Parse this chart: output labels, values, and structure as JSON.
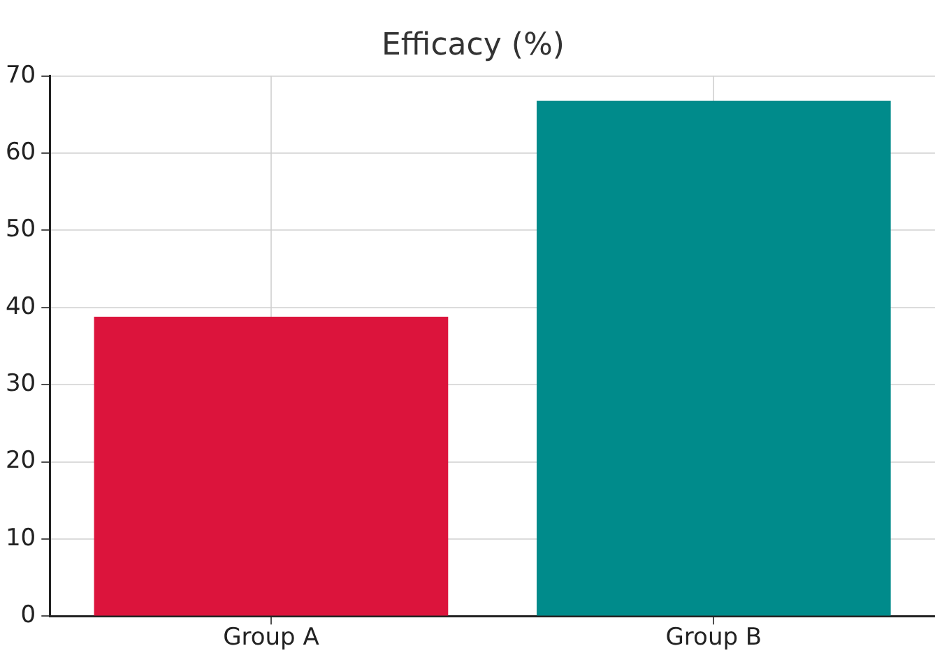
{
  "chart_data": {
    "type": "bar",
    "title": "Efficacy (%)",
    "categories": [
      "Group A",
      "Group B"
    ],
    "values": [
      38.8,
      66.8
    ],
    "colors": [
      "#dc143c",
      "#008b8b"
    ],
    "ylim": [
      0,
      70
    ],
    "yticks": [
      0,
      10,
      20,
      30,
      40,
      50,
      60,
      70
    ],
    "grid": true,
    "legend": false
  }
}
